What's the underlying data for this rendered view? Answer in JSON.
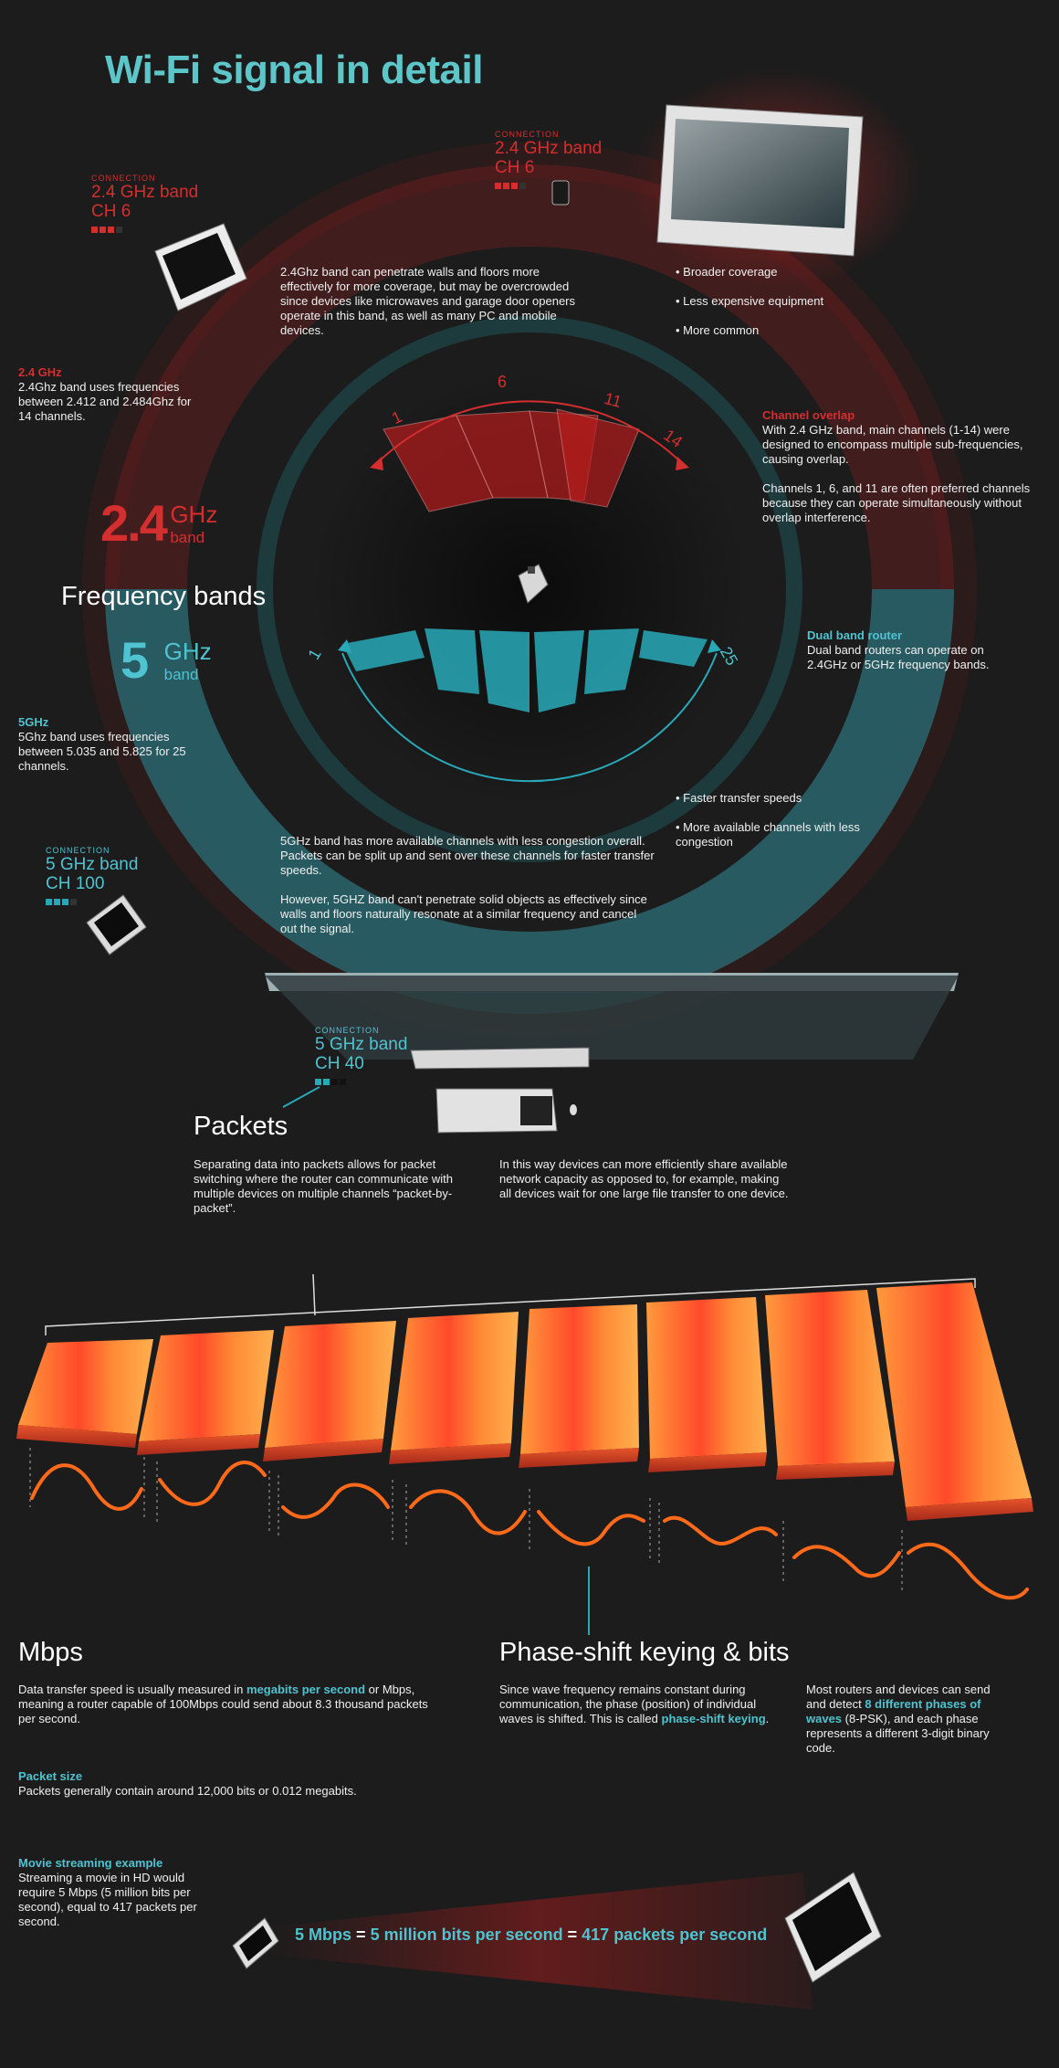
{
  "title": "Wi-Fi signal in detail",
  "colors": {
    "accent": "#5cc6c9",
    "red": "#d42e2e",
    "cyan": "#29a9b8",
    "orange": "#ff7a2a",
    "bg": "#1c1c1c"
  },
  "connections": [
    {
      "label": "CONNECTION",
      "band": "2.4 GHz band",
      "channel": "CH 6"
    },
    {
      "label": "CONNECTION",
      "band": "2.4 GHz band",
      "channel": "CH 6"
    },
    {
      "label": "CONNECTION",
      "band": "5 GHz band",
      "channel": "CH 100"
    },
    {
      "label": "CONNECTION",
      "band": "5 GHz band",
      "channel": "CH 40"
    }
  ],
  "band24": {
    "intro": "2.4Ghz band can penetrate walls and floors more effectively for more coverage, but may be overcrowded since devices like microwaves and garage door openers operate in this band, as well as many PC and mobile devices.",
    "bullets": [
      "Broader coverage",
      "Less expensive equipment",
      "More common"
    ],
    "side_title": "2.4 GHz",
    "side_text": "2.4Ghz band uses frequencies between 2.412 and 2.484Ghz for 14 channels.",
    "big_num": "2.4",
    "big_unit": "GHz",
    "big_band": "band",
    "channel_labels": [
      "1",
      "6",
      "11",
      "14"
    ]
  },
  "overlap": {
    "title": "Channel overlap",
    "text1": "With 2.4 GHz band, main channels (1-14) were designed to encompass multiple sub-frequencies, causing overlap.",
    "text2": "Channels 1, 6, and 11 are often preferred channels because they can operate simultaneously without overlap interference."
  },
  "frequency_bands": "Frequency bands",
  "band5": {
    "big_num": "5",
    "big_unit": "GHz",
    "big_band": "band",
    "side_title": "5GHz",
    "side_text": "5Ghz band uses frequencies between 5.035 and 5.825 for 25 channels.",
    "channel_start": "1",
    "channel_end": "25",
    "bullets": [
      "Faster transfer speeds",
      "More available channels with less congestion"
    ],
    "text1": "5GHz band has more available channels with less congestion overall. Packets can be split up and sent over these channels for faster transfer speeds.",
    "text2": "However, 5GHZ band can't penetrate solid objects as effectively since walls and floors naturally resonate at a similar frequency and cancel out the signal."
  },
  "dual": {
    "title": "Dual band router",
    "text": "Dual band routers can operate on 2.4GHz or 5GHz frequency bands."
  },
  "packets": {
    "title": "Packets",
    "text1": "Separating data into packets allows for packet switching where the router can communicate with multiple devices on multiple channels “packet-by-packet”.",
    "text2": "In this way devices can more efficiently share available network capacity as opposed to, for example, making all devices wait for one large file transfer to one device."
  },
  "mbps": {
    "title": "Mbps",
    "text_a": "Data transfer speed is usually measured in ",
    "text_link": "megabits per second",
    "text_b": " or Mbps, meaning a router capable of 100Mbps could send about 8.3 thousand packets per second.",
    "packet_size_title": "Packet size",
    "packet_size_text": "Packets generally contain around 12,000 bits or 0.012 megabits.",
    "movie_title": "Movie streaming example",
    "movie_text": "Streaming a movie in HD would require 5 Mbps (5 million bits per second), equal to 417 packets per second."
  },
  "psk": {
    "title": "Phase-shift keying & bits",
    "text1_a": "Since wave frequency remains constant during communication, the phase (position) of individual waves is shifted. This is called ",
    "text1_link": "phase-shift keying",
    "text1_b": ".",
    "text2_a": "Most routers and devices can send and detect ",
    "text2_link": "8 different phases of waves",
    "text2_b": " (8-PSK), and each phase represents a different 3-digit binary code."
  },
  "equation": {
    "a": "5 Mbps",
    "eq1": "=",
    "b": "5 million bits per second",
    "eq2": "=",
    "c": "417 packets per second"
  }
}
